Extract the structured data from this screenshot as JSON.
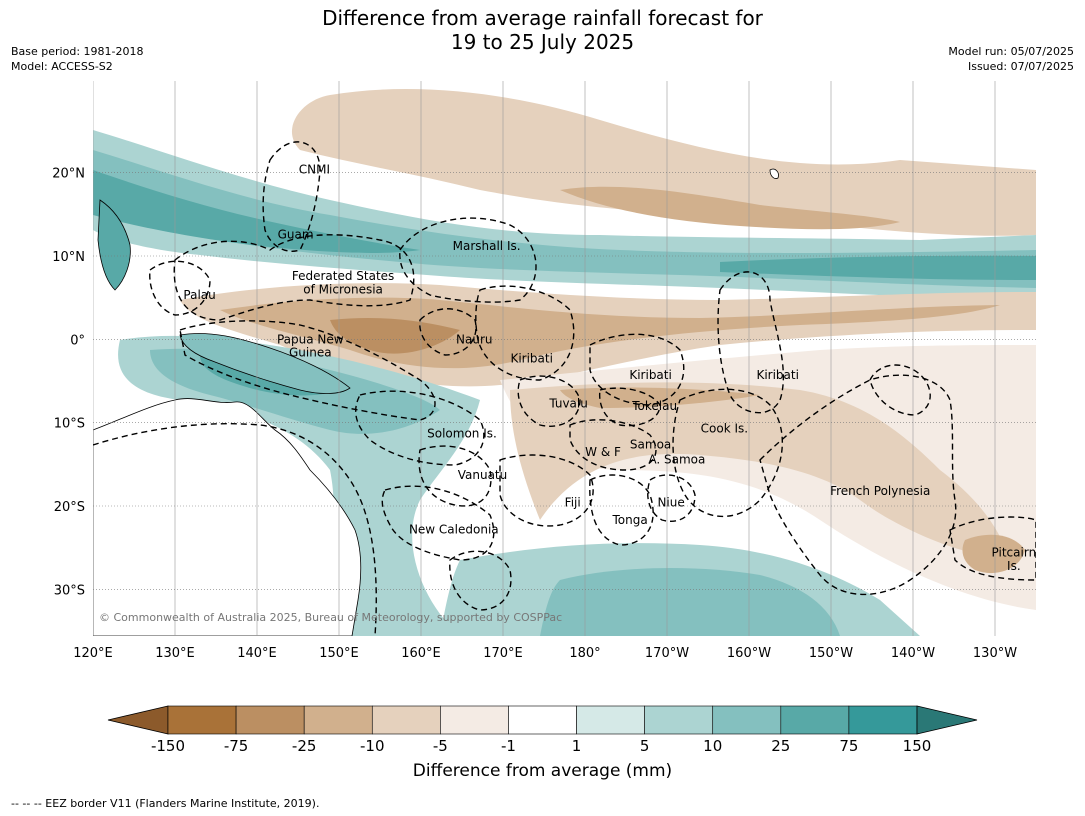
{
  "title_line1": "Difference from average rainfall forecast for",
  "title_line2": "19 to 25 July 2025",
  "base_period": "Base period: 1981-2018",
  "model": "Model: ACCESS-S2",
  "model_run": "Model run: 05/07/2025",
  "issued": "Issued: 07/07/2025",
  "copyright": "© Commonwealth of Australia 2025, Bureau of Meteorology, supported by COSPPac",
  "footnote": "-- -- -- EEZ border V11 (Flanders Marine Institute, 2019).",
  "colorbar": {
    "label": "Difference from average (mm)",
    "ticks": [
      "-150",
      "-75",
      "-25",
      "-10",
      "-5",
      "-1",
      "1",
      "5",
      "10",
      "25",
      "75",
      "150"
    ],
    "colors": [
      "#8c5a2b",
      "#a97238",
      "#bb8f62",
      "#d1b08d",
      "#e5d1bd",
      "#f4ebe4",
      "#ffffff",
      "#d5e9e7",
      "#acd4d2",
      "#84c0bf",
      "#58a9a7",
      "#35999a",
      "#2a7876"
    ]
  },
  "axes": {
    "lon_ticks": [
      "120°E",
      "130°E",
      "140°E",
      "150°E",
      "160°E",
      "170°E",
      "180°",
      "170°W",
      "160°W",
      "150°W",
      "140°W",
      "130°W"
    ],
    "lat_ticks": [
      "20°N",
      "10°N",
      "0°",
      "10°S",
      "20°S",
      "30°S"
    ]
  },
  "places": [
    {
      "name": "CNMI",
      "lon": 147,
      "lat": 20.4
    },
    {
      "name": "Guam",
      "lon": 144.7,
      "lat": 12.6
    },
    {
      "name": "Marshall Is.",
      "lon": 168,
      "lat": 11.2
    },
    {
      "name": "Federated States",
      "lon": 150.5,
      "lat": 7.6
    },
    {
      "name": "of Micronesia",
      "lon": 150.5,
      "lat": 6
    },
    {
      "name": "Palau",
      "lon": 133,
      "lat": 5.3
    },
    {
      "name": "Papua New",
      "lon": 146.5,
      "lat": 0
    },
    {
      "name": "Guinea",
      "lon": 146.5,
      "lat": -1.6
    },
    {
      "name": "Nauru",
      "lon": 166.5,
      "lat": 0
    },
    {
      "name": "Kiribati",
      "lon": 173.5,
      "lat": -2.3
    },
    {
      "name": "Kiribati",
      "lon": -172,
      "lat": -4.3
    },
    {
      "name": "Kiribati",
      "lon": -156.5,
      "lat": -4.3
    },
    {
      "name": "Tuvalu",
      "lon": 178,
      "lat": -7.7
    },
    {
      "name": "Tokelau",
      "lon": -171.5,
      "lat": -8
    },
    {
      "name": "Cook Is.",
      "lon": -163,
      "lat": -10.7
    },
    {
      "name": "Solomon Is.",
      "lon": 165,
      "lat": -11.3
    },
    {
      "name": "Samoa",
      "lon": -172,
      "lat": -12.6
    },
    {
      "name": "W & F",
      "lon": -177.8,
      "lat": -13.5
    },
    {
      "name": "A. Samoa",
      "lon": -168.8,
      "lat": -14.4
    },
    {
      "name": "Vanuatu",
      "lon": 167.5,
      "lat": -16.3
    },
    {
      "name": "French Polynesia",
      "lon": -144,
      "lat": -18.2
    },
    {
      "name": "Fiji",
      "lon": 178.5,
      "lat": -19.6
    },
    {
      "name": "Niue",
      "lon": -169.5,
      "lat": -19.6
    },
    {
      "name": "Tonga",
      "lon": -174.5,
      "lat": -21.7
    },
    {
      "name": "New Caledonia",
      "lon": 164,
      "lat": -22.8
    },
    {
      "name": "Pitcairn",
      "lon": -127.7,
      "lat": -25.6
    },
    {
      "name": "Is.",
      "lon": -127.7,
      "lat": -27.2
    }
  ]
}
